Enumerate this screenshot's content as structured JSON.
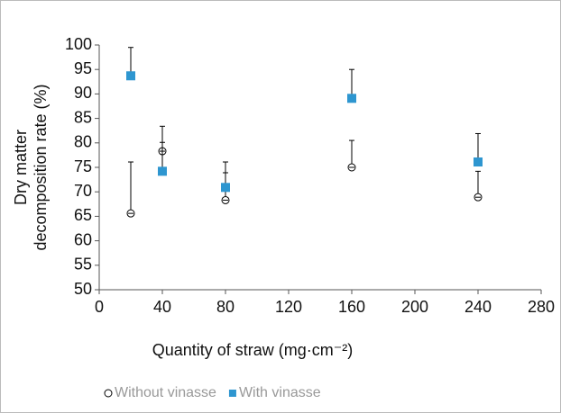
{
  "chart_data": {
    "type": "scatter",
    "xlabel": "Quantity of straw (mg·cm⁻²)",
    "ylabel": [
      "Dry matter",
      "decomposition rate (%)"
    ],
    "xlim": [
      0,
      280
    ],
    "xticks": [
      0,
      40,
      80,
      120,
      160,
      200,
      240,
      280
    ],
    "ylim": [
      50,
      100
    ],
    "yticks": [
      50,
      55,
      60,
      65,
      70,
      75,
      80,
      85,
      90,
      95,
      100
    ],
    "legend": "bottom-left",
    "series": [
      {
        "name": "Without vinasse",
        "color": "#000000",
        "marker": "circle",
        "x": [
          20,
          40,
          80,
          160,
          240
        ],
        "values": [
          65.6,
          78.3,
          68.3,
          75,
          68.9
        ],
        "errors": [
          10.5,
          5.1,
          5.6,
          5.5,
          5.3
        ]
      },
      {
        "name": "With vinasse",
        "color": "#2e96d0",
        "marker": "square",
        "x": [
          20,
          40,
          80,
          160,
          240
        ],
        "values": [
          93.7,
          74.2,
          70.9,
          89.1,
          76.1
        ],
        "errors": [
          5.8,
          5.9,
          5.2,
          5.9,
          5.8
        ]
      }
    ]
  }
}
